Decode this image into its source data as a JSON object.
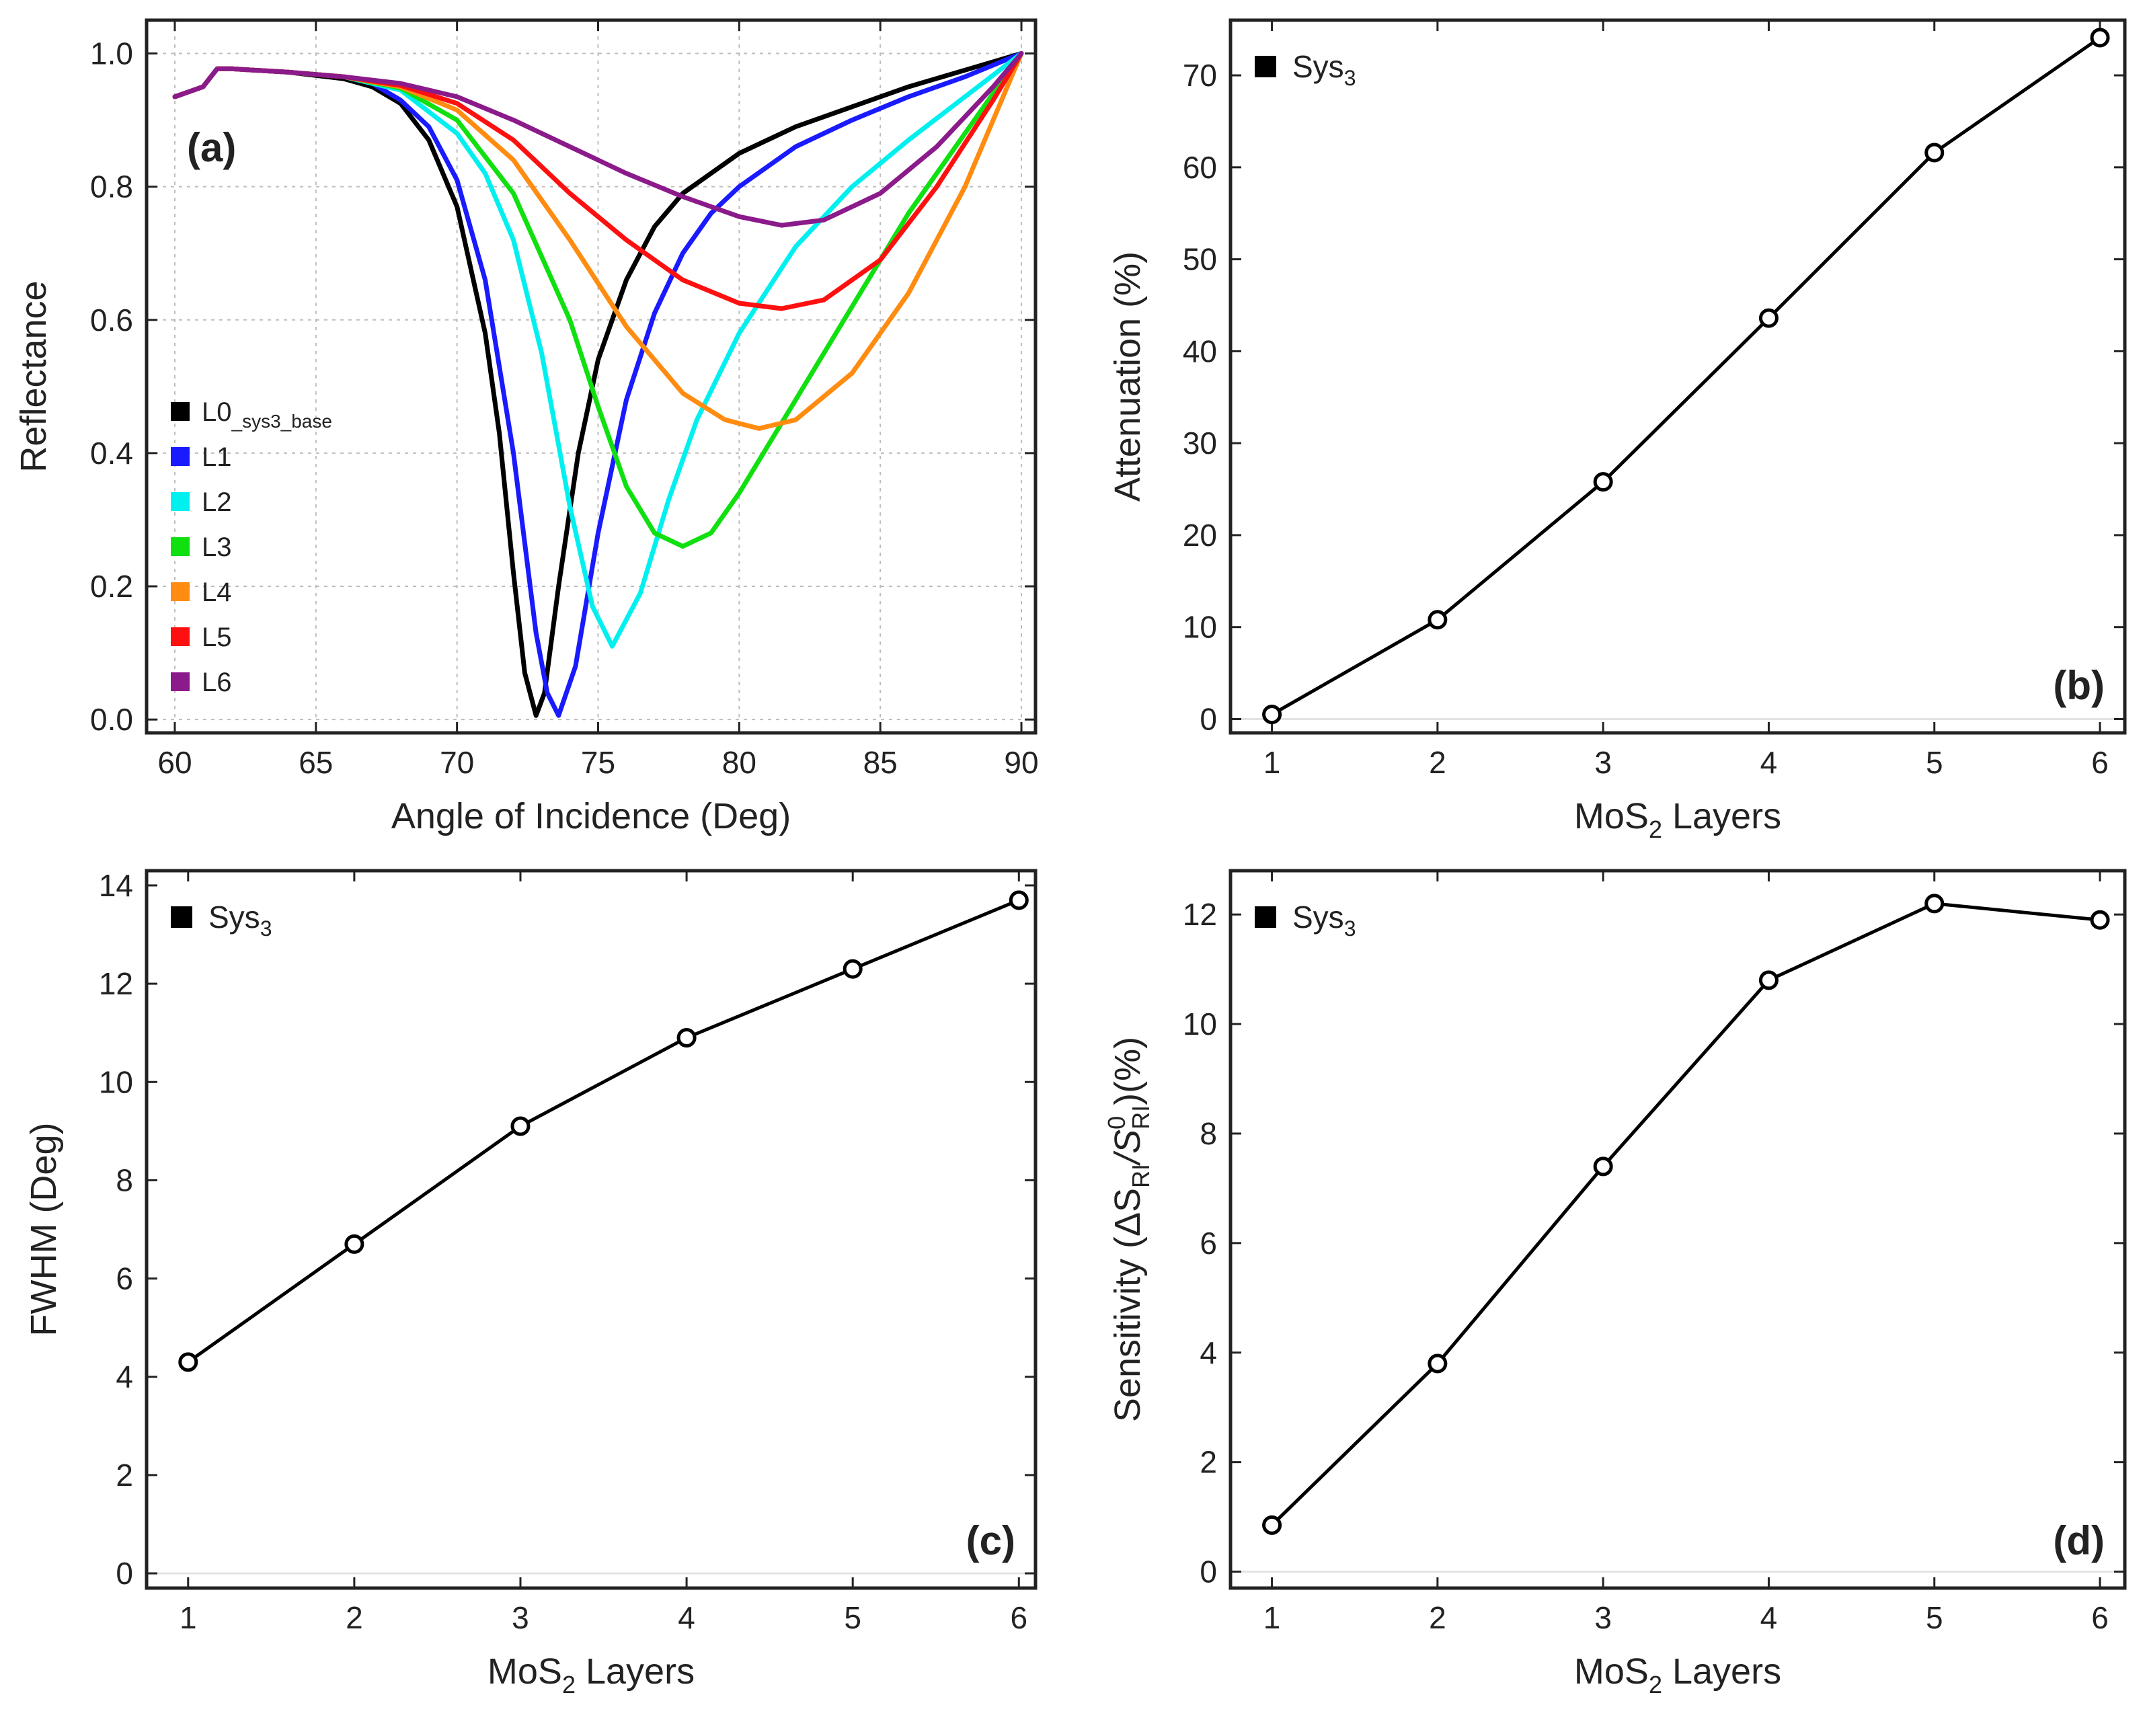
{
  "chart_data": [
    {
      "type": "line",
      "panel_label": "(a)",
      "xlabel": "Angle of Incidence (Deg)",
      "ylabel": "Reflectance",
      "xlim": [
        59,
        90.5
      ],
      "ylim": [
        -0.02,
        1.05
      ],
      "xticks": [
        60,
        65,
        70,
        75,
        80,
        85,
        90
      ],
      "yticks": [
        0.0,
        0.2,
        0.4,
        0.6,
        0.8,
        1.0
      ],
      "xtick_labels": [
        "60",
        "65",
        "70",
        "75",
        "80",
        "85",
        "90"
      ],
      "ytick_labels": [
        "0.0",
        "0.2",
        "0.4",
        "0.6",
        "0.8",
        "1.0"
      ],
      "grid": true,
      "legend_position": "left-middle",
      "series": [
        {
          "name": "L0",
          "name_sub": "_sys3_base",
          "color": "#000000",
          "x": [
            60,
            61,
            61.5,
            62,
            64,
            66,
            67,
            68,
            69,
            70,
            71,
            71.5,
            72,
            72.4,
            72.8,
            73.1,
            73.6,
            74.3,
            75,
            76,
            77,
            78,
            80,
            82,
            84,
            86,
            88,
            90
          ],
          "y": [
            0.935,
            0.95,
            0.977,
            0.977,
            0.972,
            0.962,
            0.95,
            0.925,
            0.87,
            0.77,
            0.58,
            0.43,
            0.22,
            0.07,
            0.006,
            0.04,
            0.2,
            0.4,
            0.54,
            0.66,
            0.74,
            0.79,
            0.85,
            0.89,
            0.92,
            0.95,
            0.975,
            1.0
          ]
        },
        {
          "name": "L1",
          "color": "#1a1aff",
          "x": [
            60,
            61,
            61.5,
            62,
            64,
            66,
            67,
            68,
            69,
            70,
            71,
            72,
            72.8,
            73.2,
            73.6,
            74.2,
            75,
            76,
            77,
            78,
            79,
            80,
            82,
            84,
            86,
            88,
            90
          ],
          "y": [
            0.935,
            0.95,
            0.977,
            0.977,
            0.972,
            0.965,
            0.955,
            0.93,
            0.89,
            0.81,
            0.66,
            0.4,
            0.13,
            0.04,
            0.006,
            0.08,
            0.28,
            0.48,
            0.61,
            0.7,
            0.76,
            0.8,
            0.86,
            0.9,
            0.935,
            0.965,
            1.0
          ]
        },
        {
          "name": "L2",
          "color": "#00f0f0",
          "x": [
            60,
            61,
            61.5,
            62,
            64,
            66,
            68,
            70,
            71,
            72,
            73,
            74,
            74.8,
            75.5,
            76.5,
            77.5,
            78.5,
            80,
            82,
            84,
            86,
            88,
            90
          ],
          "y": [
            0.935,
            0.95,
            0.977,
            0.977,
            0.972,
            0.965,
            0.945,
            0.88,
            0.82,
            0.72,
            0.55,
            0.32,
            0.17,
            0.11,
            0.19,
            0.33,
            0.45,
            0.58,
            0.71,
            0.8,
            0.87,
            0.935,
            1.0
          ]
        },
        {
          "name": "L3",
          "color": "#10e010",
          "x": [
            60,
            61,
            61.5,
            62,
            64,
            66,
            68,
            70,
            72,
            74,
            75,
            76,
            77,
            78,
            79,
            80,
            82,
            84,
            86,
            88,
            90
          ],
          "y": [
            0.935,
            0.95,
            0.977,
            0.977,
            0.972,
            0.965,
            0.948,
            0.9,
            0.79,
            0.6,
            0.47,
            0.35,
            0.28,
            0.26,
            0.28,
            0.34,
            0.48,
            0.62,
            0.76,
            0.88,
            1.0
          ]
        },
        {
          "name": "L4",
          "color": "#ff8c10",
          "x": [
            60,
            61,
            61.5,
            62,
            64,
            66,
            68,
            70,
            72,
            74,
            76,
            78,
            79.5,
            80.7,
            82,
            84,
            86,
            88,
            90
          ],
          "y": [
            0.935,
            0.95,
            0.977,
            0.977,
            0.972,
            0.965,
            0.95,
            0.915,
            0.84,
            0.72,
            0.59,
            0.49,
            0.45,
            0.437,
            0.45,
            0.52,
            0.64,
            0.8,
            1.0
          ]
        },
        {
          "name": "L5",
          "color": "#ff1010",
          "x": [
            60,
            61,
            61.5,
            62,
            64,
            66,
            68,
            70,
            72,
            74,
            76,
            78,
            80,
            81.5,
            83,
            85,
            87,
            89,
            90
          ],
          "y": [
            0.935,
            0.95,
            0.977,
            0.977,
            0.972,
            0.965,
            0.952,
            0.925,
            0.87,
            0.79,
            0.72,
            0.66,
            0.625,
            0.617,
            0.63,
            0.69,
            0.8,
            0.93,
            1.0
          ]
        },
        {
          "name": "L6",
          "color": "#8b1a8b",
          "x": [
            60,
            61,
            61.5,
            62,
            64,
            66,
            68,
            70,
            72,
            74,
            76,
            78,
            80,
            81.5,
            83,
            85,
            87,
            89,
            90
          ],
          "y": [
            0.935,
            0.95,
            0.977,
            0.977,
            0.972,
            0.965,
            0.955,
            0.935,
            0.9,
            0.86,
            0.82,
            0.785,
            0.755,
            0.742,
            0.75,
            0.79,
            0.86,
            0.95,
            1.0
          ]
        }
      ]
    },
    {
      "type": "line",
      "panel_label": "(b)",
      "xlabel": "MoS",
      "xlabel_sub": "2",
      "xlabel_tail": " Layers",
      "ylabel": "Attenuation (%)",
      "xlim": [
        0.75,
        6.15
      ],
      "ylim": [
        -1.5,
        76
      ],
      "xticks": [
        1,
        2,
        3,
        4,
        5,
        6
      ],
      "yticks": [
        0,
        10,
        20,
        30,
        40,
        50,
        60,
        70
      ],
      "xtick_labels": [
        "1",
        "2",
        "3",
        "4",
        "5",
        "6"
      ],
      "ytick_labels": [
        "0",
        "10",
        "20",
        "30",
        "40",
        "50",
        "60",
        "70"
      ],
      "grid": false,
      "legend_position": "top-left",
      "series": [
        {
          "name": "Sys",
          "name_sub": "3",
          "color": "#000000",
          "x": [
            1,
            2,
            3,
            4,
            5,
            6
          ],
          "y": [
            0.5,
            10.8,
            25.8,
            43.6,
            61.6,
            74.1
          ]
        }
      ]
    },
    {
      "type": "line",
      "panel_label": "(c)",
      "xlabel": "MoS",
      "xlabel_sub": "2",
      "xlabel_tail": " Layers",
      "ylabel": "FWHM (Deg)",
      "xlim": [
        0.75,
        6.1
      ],
      "ylim": [
        -0.3,
        14.3
      ],
      "xticks": [
        1,
        2,
        3,
        4,
        5,
        6
      ],
      "yticks": [
        0,
        2,
        4,
        6,
        8,
        10,
        12,
        14
      ],
      "xtick_labels": [
        "1",
        "2",
        "3",
        "4",
        "5",
        "6"
      ],
      "ytick_labels": [
        "0",
        "2",
        "4",
        "6",
        "8",
        "10",
        "12",
        "14"
      ],
      "grid": false,
      "legend_position": "top-left",
      "series": [
        {
          "name": "Sys",
          "name_sub": "3",
          "color": "#000000",
          "x": [
            1,
            2,
            3,
            4,
            5,
            6
          ],
          "y": [
            4.3,
            6.7,
            9.1,
            10.9,
            12.3,
            13.7
          ]
        }
      ]
    },
    {
      "type": "line",
      "panel_label": "(d)",
      "xlabel": "MoS",
      "xlabel_sub": "2",
      "xlabel_tail": " Layers",
      "ylabel_parts": [
        "Sensitivity (ΔS",
        "RI",
        "/S",
        "0",
        "RI",
        ")(%)"
      ],
      "xlim": [
        0.75,
        6.15
      ],
      "ylim": [
        -0.3,
        12.8
      ],
      "xticks": [
        1,
        2,
        3,
        4,
        5,
        6
      ],
      "yticks": [
        0,
        2,
        4,
        6,
        8,
        10,
        12
      ],
      "xtick_labels": [
        "1",
        "2",
        "3",
        "4",
        "5",
        "6"
      ],
      "ytick_labels": [
        "0",
        "2",
        "4",
        "6",
        "8",
        "10",
        "12"
      ],
      "grid": false,
      "legend_position": "top-left",
      "series": [
        {
          "name": "Sys",
          "name_sub": "3",
          "color": "#000000",
          "x": [
            1,
            2,
            3,
            4,
            5,
            6
          ],
          "y": [
            0.85,
            3.8,
            7.4,
            10.8,
            12.2,
            11.9
          ]
        }
      ]
    }
  ]
}
